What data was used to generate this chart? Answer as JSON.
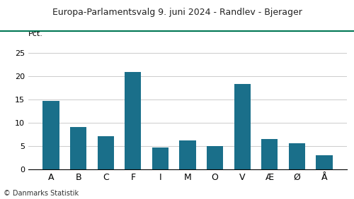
{
  "title": "Europa-Parlamentsvalg 9. juni 2024 - Randlev - Bjerager",
  "categories": [
    "A",
    "B",
    "C",
    "F",
    "I",
    "M",
    "O",
    "V",
    "Æ",
    "Ø",
    "Å"
  ],
  "values": [
    14.7,
    9.0,
    7.1,
    21.0,
    4.6,
    6.2,
    5.0,
    18.3,
    6.5,
    5.6,
    3.0
  ],
  "bar_color": "#1a6f8a",
  "ylabel": "Pct.",
  "ylim": [
    0,
    27
  ],
  "yticks": [
    0,
    5,
    10,
    15,
    20,
    25
  ],
  "footer": "© Danmarks Statistik",
  "title_color": "#222222",
  "title_line_color": "#007755",
  "background_color": "#ffffff",
  "grid_color": "#cccccc"
}
